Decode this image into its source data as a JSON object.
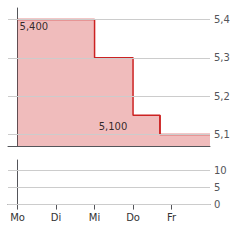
{
  "chart_data": [
    {
      "type": "line",
      "series": [
        {
          "type": "area",
          "color": "#cc2222",
          "x": [
            0,
            2,
            2,
            3,
            3,
            3.7,
            3.7,
            5
          ],
          "values": [
            5.4,
            5.4,
            5.3,
            5.3,
            5.15,
            5.15,
            5.1,
            5.1
          ]
        },
        {
          "type": "line",
          "color": "#cc2222",
          "x": [
            3.7,
            3.7
          ],
          "values": [
            5.1,
            5.15
          ]
        }
      ],
      "xlim": [
        -0.25,
        5.0
      ],
      "ylim": [
        5.07,
        5.43
      ],
      "yticks": [
        {
          "value": 5.1,
          "label": "5,1"
        },
        {
          "value": 5.2,
          "label": "5,2"
        },
        {
          "value": 5.3,
          "label": "5,3"
        },
        {
          "value": 5.4,
          "label": "5,4"
        }
      ],
      "grid": true,
      "tick_labels": "y",
      "annotations": [
        {
          "text": "5,400",
          "x": 0.05,
          "y": 5.4
        },
        {
          "text": "5,100",
          "x": 2.85,
          "y": 5.1
        }
      ]
    },
    {
      "type": "panel",
      "xlim": [
        -0.25,
        5.0
      ],
      "xticks": [
        {
          "value": 0,
          "label": "Mo"
        },
        {
          "value": 1,
          "label": "Di"
        },
        {
          "value": 2,
          "label": "Mi"
        },
        {
          "value": 3,
          "label": "Do"
        },
        {
          "value": 4,
          "label": "Fr"
        }
      ],
      "ylim": [
        -1,
        13
      ],
      "yticks": [
        0,
        5,
        10
      ],
      "grid": true
    }
  ]
}
